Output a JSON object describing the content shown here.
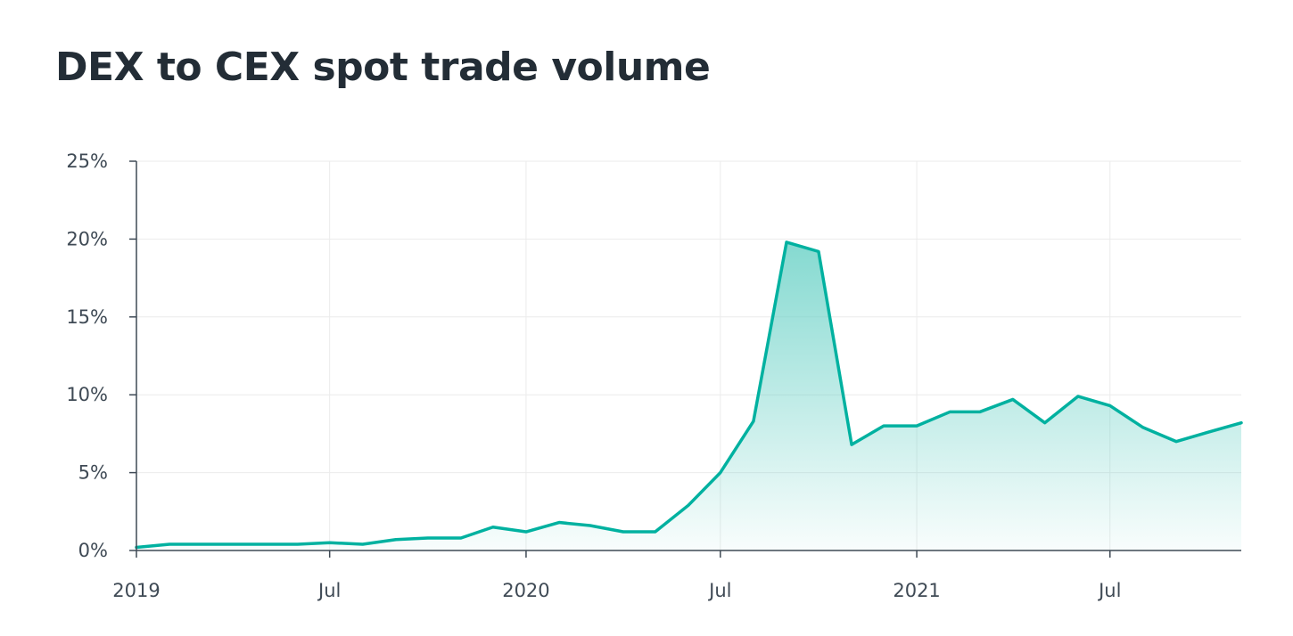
{
  "chart_data": {
    "type": "area",
    "title": "DEX to CEX spot trade volume",
    "xlabel": "",
    "ylabel": "",
    "x": [
      "2019-01-01",
      "2019-02-01",
      "2019-03-01",
      "2019-04-01",
      "2019-05-01",
      "2019-06-01",
      "2019-07-01",
      "2019-08-01",
      "2019-09-01",
      "2019-10-01",
      "2019-11-01",
      "2019-12-01",
      "2020-01-01",
      "2020-02-01",
      "2020-03-01",
      "2020-04-01",
      "2020-05-01",
      "2020-06-01",
      "2020-07-01",
      "2020-08-01",
      "2020-09-01",
      "2020-10-01",
      "2020-11-01",
      "2020-12-01",
      "2021-01-01",
      "2021-02-01",
      "2021-03-01",
      "2021-04-01",
      "2021-05-01",
      "2021-06-01",
      "2021-07-01",
      "2021-08-01",
      "2021-09-01",
      "2021-10-01",
      "2021-11-01"
    ],
    "series": [
      {
        "values": [
          0.2,
          0.4,
          0.4,
          0.4,
          0.4,
          0.4,
          0.5,
          0.4,
          0.7,
          0.8,
          0.8,
          1.5,
          1.2,
          1.8,
          1.6,
          1.2,
          1.2,
          2.9,
          5.0,
          8.3,
          19.8,
          19.2,
          6.8,
          8.0,
          8.0,
          8.9,
          8.9,
          9.7,
          8.2,
          9.9,
          9.3,
          7.9,
          7.0,
          7.6,
          8.2
        ]
      }
    ],
    "x_ticks": [
      "2019",
      "Jul",
      "2020",
      "Jul",
      "2021",
      "Jul"
    ],
    "x_tick_dates": [
      "2019-01-01",
      "2019-07-01",
      "2020-01-01",
      "2020-07-01",
      "2021-01-01",
      "2021-07-01"
    ],
    "y_ticks": [
      0,
      5,
      10,
      15,
      20,
      25
    ],
    "y_tick_labels": [
      "0%",
      "5%",
      "10%",
      "15%",
      "20%",
      "25%"
    ],
    "ylim": [
      0,
      25
    ],
    "xlim": [
      "2019-01-01",
      "2021-11-01"
    ],
    "grid": true,
    "legend": "none",
    "colors": {
      "line": "#00b1a0",
      "fill_top": "#5ccdc1",
      "grid": "#ebebeb",
      "axis": "#3f4a55",
      "title": "#232d36"
    }
  }
}
